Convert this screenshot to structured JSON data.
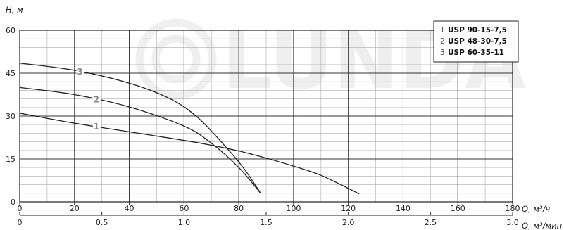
{
  "watermark": {
    "text": "LUNDA"
  },
  "chart_data": {
    "type": "line",
    "ylabel": "H, м",
    "xlabel_primary": "Q, м³/ч",
    "xlabel_secondary": "Q, м³/мин",
    "xlim": [
      0,
      180
    ],
    "ylim": [
      0,
      60
    ],
    "x_ticks": [
      "0",
      "20",
      "40",
      "60",
      "80",
      "100",
      "120",
      "140",
      "160",
      "180"
    ],
    "x2_ticks": [
      "0",
      "0.5",
      "1.0",
      "1.5",
      "2.0",
      "2.5",
      "3.0"
    ],
    "x2_tick_values_q": [
      0,
      30,
      60,
      90,
      120,
      150,
      180
    ],
    "y_ticks": [
      "0",
      "15",
      "30",
      "45",
      "60"
    ],
    "grid": true,
    "legend_position": "top-right",
    "legend": [
      {
        "num": "1",
        "name": "USP 90-15-7,5"
      },
      {
        "num": "2",
        "name": "USP 48-30-7,5"
      },
      {
        "num": "3",
        "name": "USP 60-35-11"
      }
    ],
    "series": [
      {
        "label": "1",
        "color": "#222222",
        "label_at_x": 28,
        "x": [
          0,
          20,
          40,
          60,
          70,
          80,
          90,
          100,
          110,
          124
        ],
        "y": [
          31,
          27.5,
          24.5,
          21.5,
          19.8,
          17.8,
          15.3,
          12.5,
          9.3,
          2.8
        ]
      },
      {
        "label": "2",
        "color": "#222222",
        "label_at_x": 28,
        "x": [
          0,
          20,
          40,
          60,
          70,
          80,
          88
        ],
        "y": [
          40,
          37.5,
          33.2,
          26.5,
          20.5,
          12,
          3
        ]
      },
      {
        "label": "3",
        "color": "#222222",
        "label_at_x": 22,
        "x": [
          0,
          20,
          40,
          55,
          65,
          75,
          82,
          88
        ],
        "y": [
          48.5,
          46,
          41.5,
          36,
          29.5,
          19.5,
          11.5,
          3
        ]
      }
    ]
  }
}
